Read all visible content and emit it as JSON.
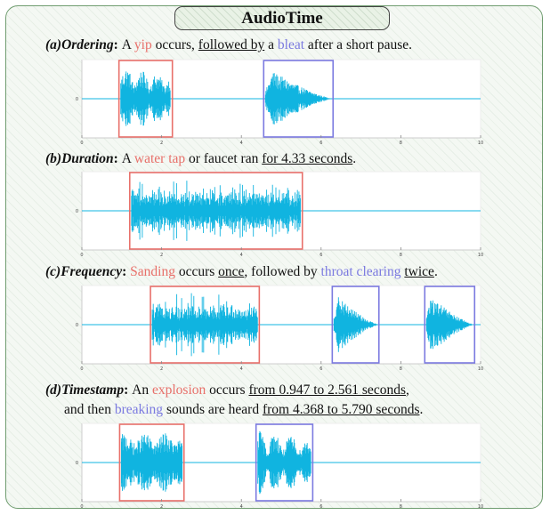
{
  "title": "AudioTime",
  "colors": {
    "red_text": "#e8706a",
    "blue_text": "#7b7ae0",
    "wave": "#10b4e0",
    "red_box": "#e8706a",
    "blue_box": "#7b7ae0"
  },
  "panels": [
    {
      "label": "(a)Ordering",
      "lines": [
        [
          {
            "text": "A ",
            "style": ""
          },
          {
            "text": "yip",
            "style": "red"
          },
          {
            "text": " occurs, ",
            "style": ""
          },
          {
            "text": "followed by",
            "style": "ul"
          },
          {
            "text": " a ",
            "style": ""
          },
          {
            "text": "bleat",
            "style": "blue"
          },
          {
            "text": " after a short pause.",
            "style": ""
          }
        ]
      ]
    },
    {
      "label": "(b)Duration",
      "lines": [
        [
          {
            "text": "A ",
            "style": ""
          },
          {
            "text": "water tap",
            "style": "red"
          },
          {
            "text": " or faucet ran ",
            "style": ""
          },
          {
            "text": "for 4.33 seconds",
            "style": "ul"
          },
          {
            "text": ".",
            "style": ""
          }
        ]
      ]
    },
    {
      "label": "(c)Frequency",
      "lines": [
        [
          {
            "text": "Sanding",
            "style": "red"
          },
          {
            "text": " occurs ",
            "style": ""
          },
          {
            "text": "once",
            "style": "ul"
          },
          {
            "text": ", followed by ",
            "style": ""
          },
          {
            "text": "throat clearing",
            "style": "blue"
          },
          {
            "text": " ",
            "style": ""
          },
          {
            "text": "twice",
            "style": "ul"
          },
          {
            "text": ".",
            "style": ""
          }
        ]
      ]
    },
    {
      "label": "(d)Timestamp",
      "lines": [
        [
          {
            "text": "An ",
            "style": ""
          },
          {
            "text": "explosion",
            "style": "red"
          },
          {
            "text": " occurs ",
            "style": ""
          },
          {
            "text": "from 0.947 to 2.561 seconds",
            "style": "ul"
          },
          {
            "text": ",",
            "style": ""
          }
        ],
        [
          {
            "text": "and then ",
            "style": ""
          },
          {
            "text": "breaking",
            "style": "blue"
          },
          {
            "text": " sounds are heard ",
            "style": ""
          },
          {
            "text": "from 4.368 to 5.790 seconds",
            "style": "ul"
          },
          {
            "text": ".",
            "style": ""
          }
        ]
      ]
    }
  ],
  "chart_data": [
    {
      "type": "line",
      "xlim": [
        0,
        10
      ],
      "x_ticks": [
        "0",
        "2",
        "4",
        "6",
        "8",
        "10"
      ],
      "y_ticks": [
        "0"
      ],
      "events": [
        {
          "label": "yip",
          "start": 0.93,
          "end": 2.27,
          "box": "red",
          "shape": "bursty"
        },
        {
          "label": "bleat",
          "start": 4.56,
          "end": 6.3,
          "box": "blue",
          "shape": "decay"
        }
      ]
    },
    {
      "type": "line",
      "xlim": [
        0,
        10
      ],
      "x_ticks": [
        "0",
        "2",
        "4",
        "6",
        "8",
        "10"
      ],
      "y_ticks": [
        "0"
      ],
      "events": [
        {
          "label": "water tap",
          "start": 1.2,
          "end": 5.53,
          "box": "red",
          "shape": "sustained"
        }
      ]
    },
    {
      "type": "line",
      "xlim": [
        0,
        10
      ],
      "x_ticks": [
        "0",
        "2",
        "4",
        "6",
        "8",
        "10"
      ],
      "y_ticks": [
        "0"
      ],
      "events": [
        {
          "label": "sanding",
          "start": 1.72,
          "end": 4.45,
          "box": "red",
          "shape": "sustained"
        },
        {
          "label": "throat clearing",
          "start": 6.28,
          "end": 7.45,
          "box": "blue",
          "shape": "decay"
        },
        {
          "label": "throat clearing",
          "start": 8.6,
          "end": 9.85,
          "box": "blue",
          "shape": "decay"
        }
      ]
    },
    {
      "type": "line",
      "xlim": [
        0,
        10
      ],
      "x_ticks": [
        "0",
        "2",
        "4",
        "6",
        "8",
        "10"
      ],
      "y_ticks": [
        "0"
      ],
      "events": [
        {
          "label": "explosion",
          "start": 0.947,
          "end": 2.561,
          "box": "red",
          "shape": "block"
        },
        {
          "label": "breaking",
          "start": 4.368,
          "end": 5.79,
          "box": "blue",
          "shape": "bursty"
        }
      ]
    }
  ]
}
